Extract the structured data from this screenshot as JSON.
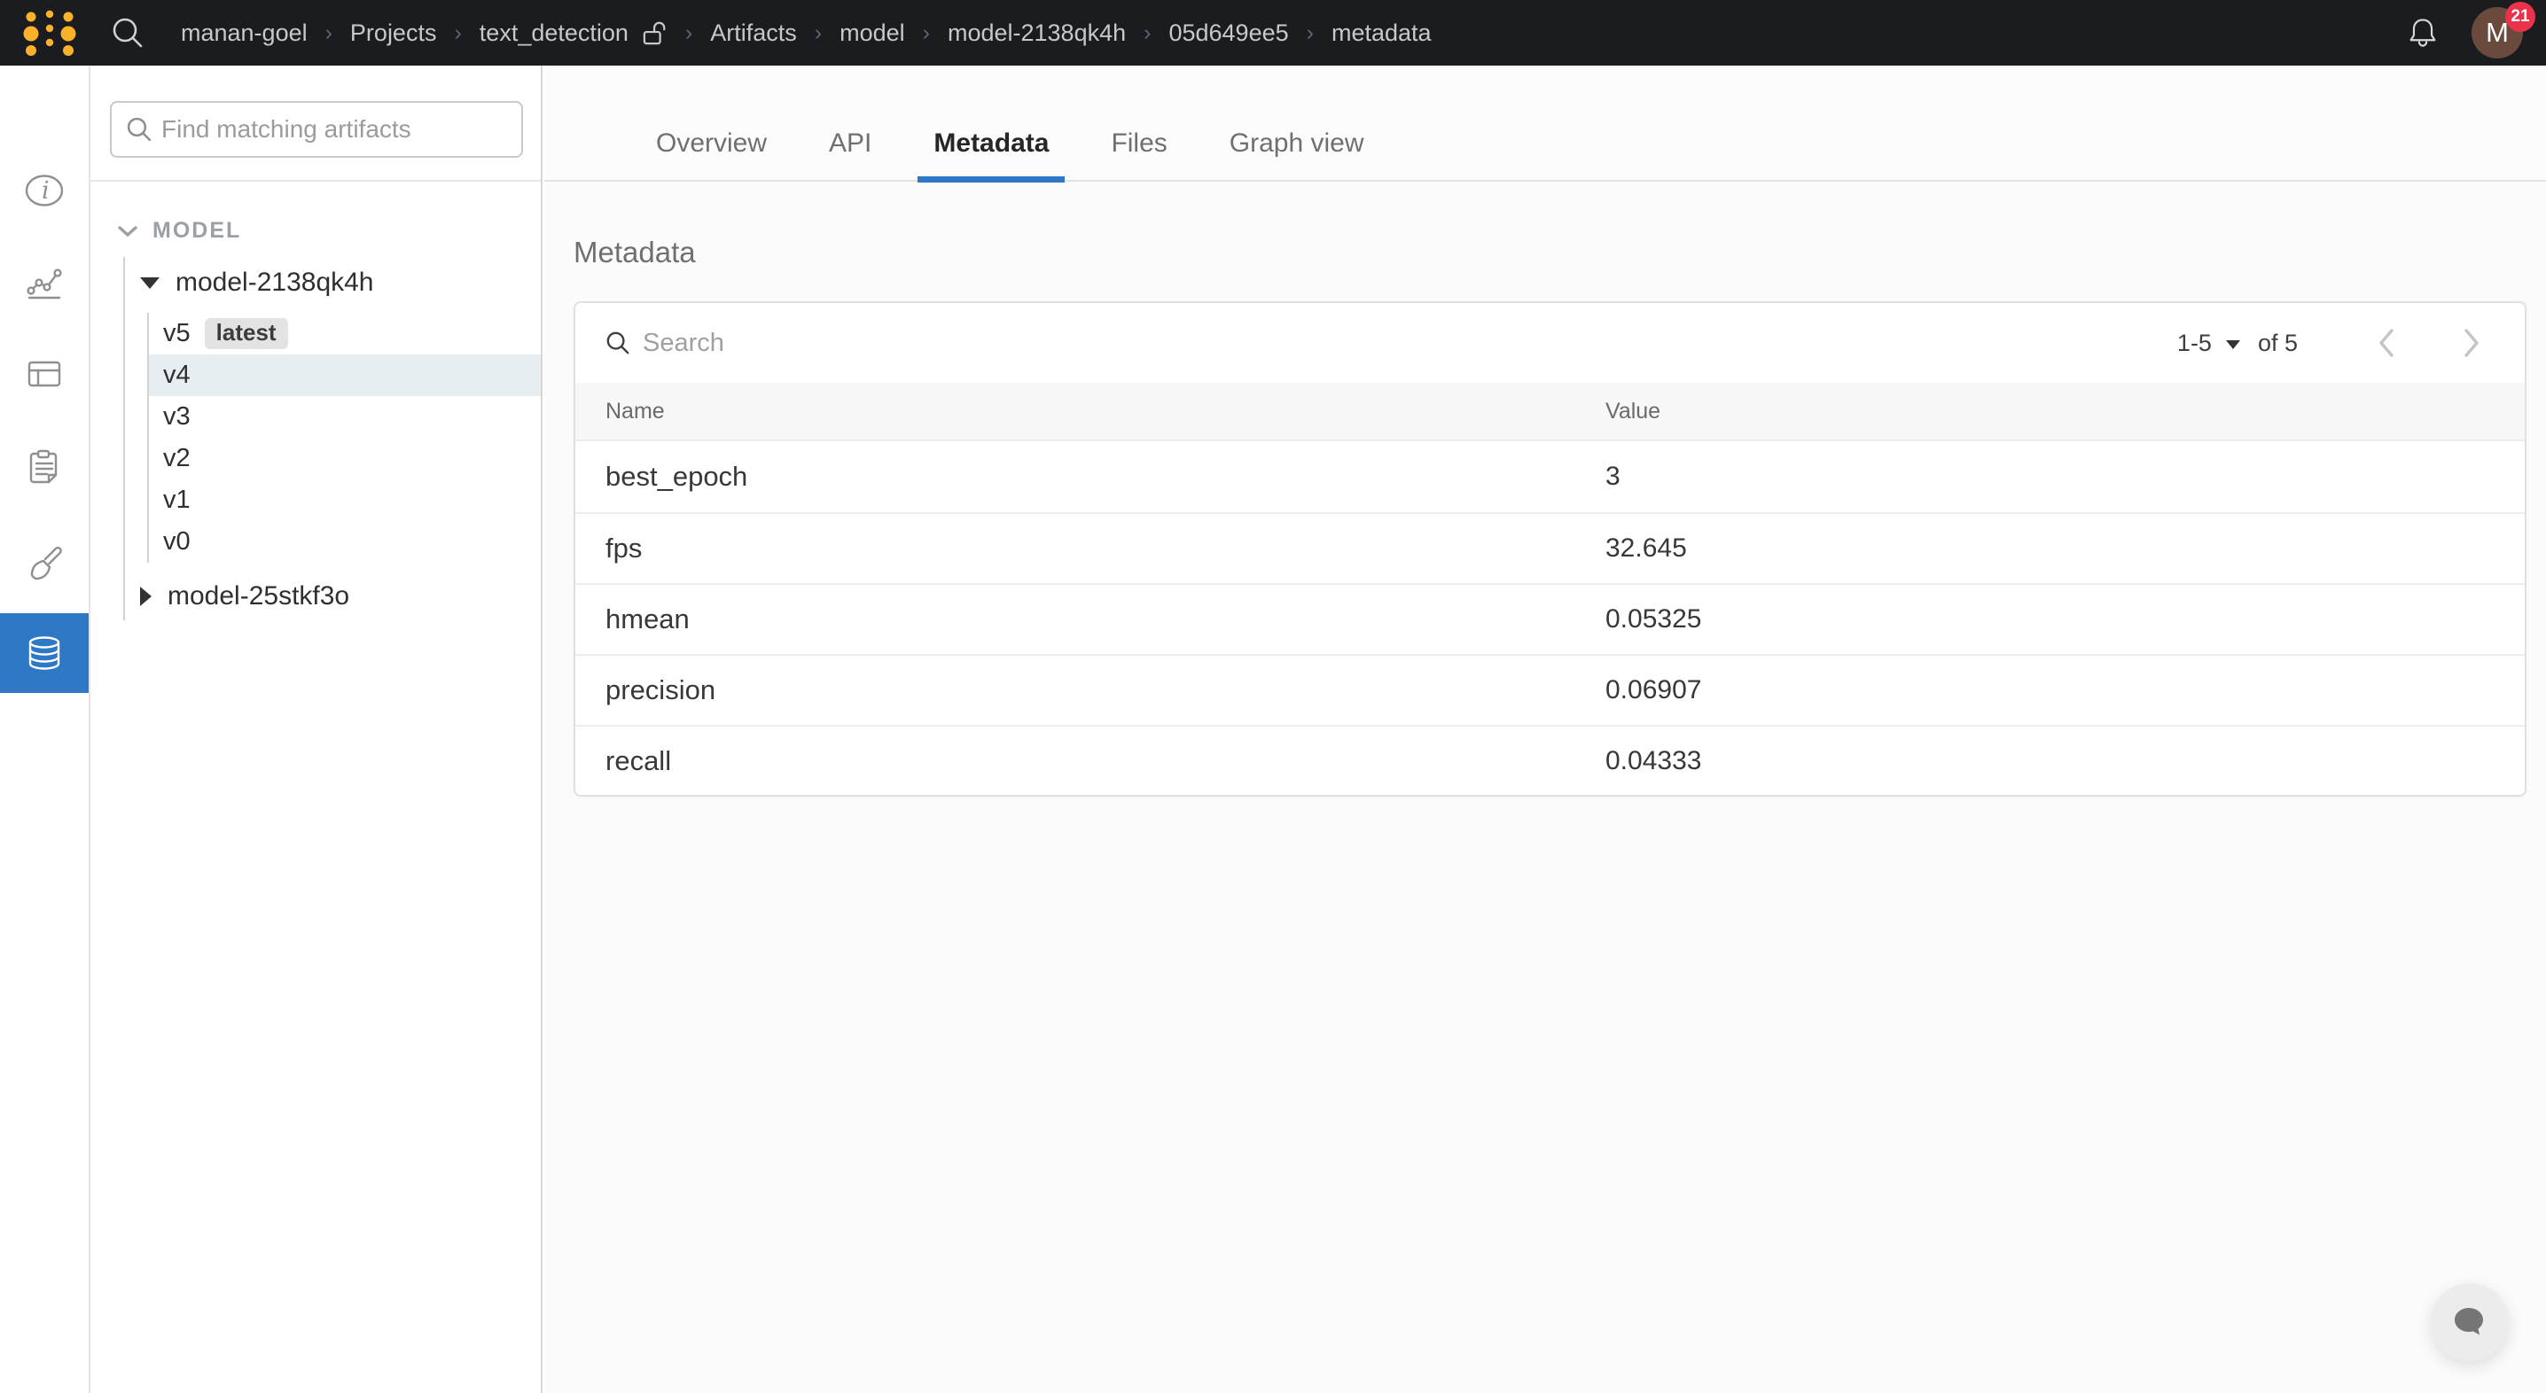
{
  "topbar": {
    "breadcrumb": [
      {
        "label": "manan-goel"
      },
      {
        "label": "Projects"
      },
      {
        "label": "text_detection",
        "lock": true
      },
      {
        "label": "Artifacts"
      },
      {
        "label": "model"
      },
      {
        "label": "model-2138qk4h"
      },
      {
        "label": "05d649ee5"
      },
      {
        "label": "metadata"
      }
    ],
    "notification_count": "21",
    "avatar_initial": "M"
  },
  "rail": {
    "items": [
      "info",
      "charts",
      "tables",
      "reports",
      "sweeps",
      "artifacts"
    ],
    "selected": "artifacts"
  },
  "sidebar": {
    "search_placeholder": "Find matching artifacts",
    "section_label": "MODEL",
    "artifacts": [
      {
        "name": "model-2138qk4h",
        "expanded": true,
        "versions": [
          {
            "label": "v5",
            "tag": "latest"
          },
          {
            "label": "v4",
            "selected": true
          },
          {
            "label": "v3"
          },
          {
            "label": "v2"
          },
          {
            "label": "v1"
          },
          {
            "label": "v0"
          }
        ]
      },
      {
        "name": "model-25stkf3o",
        "expanded": false
      }
    ]
  },
  "tabs": {
    "items": [
      "Overview",
      "API",
      "Metadata",
      "Files",
      "Graph view"
    ],
    "active": "Metadata"
  },
  "main": {
    "title": "Metadata",
    "search_placeholder": "Search",
    "pagination": {
      "range": "1-5",
      "of": "of 5"
    },
    "table": {
      "columns": [
        "Name",
        "Value"
      ],
      "rows": [
        {
          "name": "best_epoch",
          "value": "3"
        },
        {
          "name": "fps",
          "value": "32.645"
        },
        {
          "name": "hmean",
          "value": "0.05325"
        },
        {
          "name": "precision",
          "value": "0.06907"
        },
        {
          "name": "recall",
          "value": "0.04333"
        }
      ]
    }
  },
  "colors": {
    "accent_blue": "#2e78c5",
    "topbar_bg": "#1a1c1f",
    "logo_gold": "#fcb12b",
    "badge_red": "#ea334a",
    "selected_version_bg": "#e7eef2",
    "avatar_brown": "#6b4a3e"
  }
}
